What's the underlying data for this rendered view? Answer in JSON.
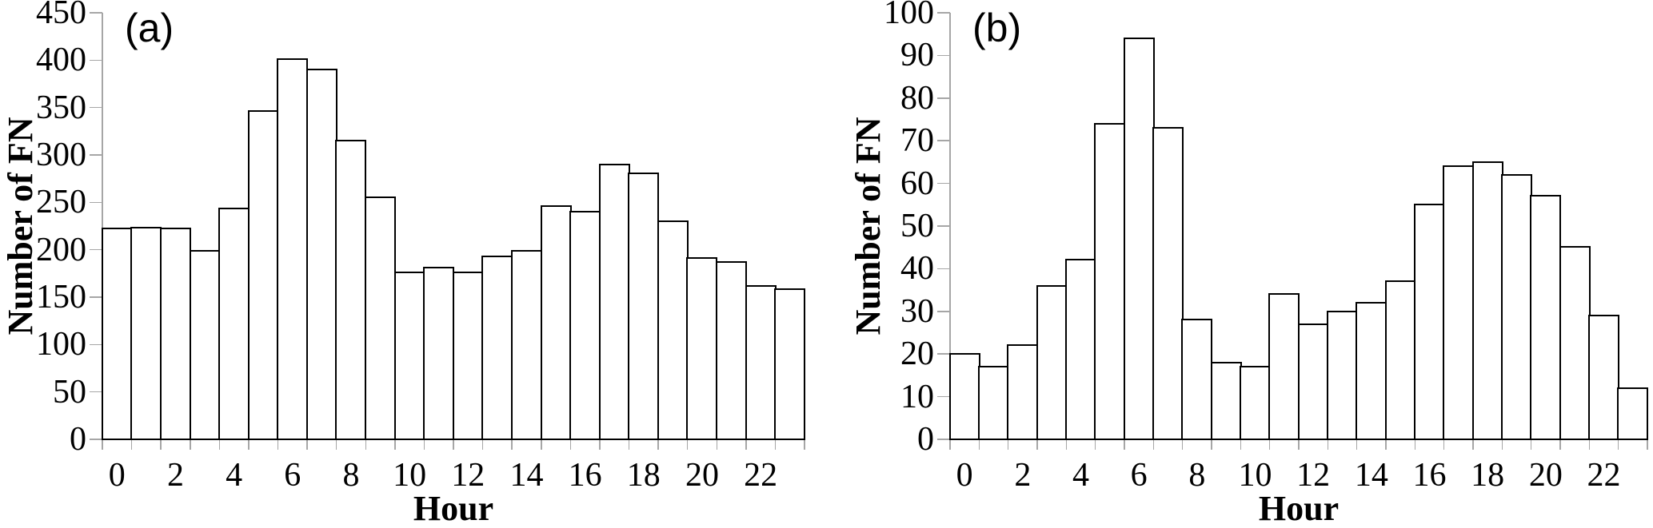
{
  "figure": {
    "background": "#ffffff",
    "bar_fill": "#ffffff",
    "bar_border_color": "#000000",
    "axis_color": "#a6a6a6",
    "text_color": "#000000"
  },
  "chart_data": [
    {
      "type": "bar",
      "panel_label": "(a)",
      "xlabel": "Hour",
      "ylabel": "Number of FN",
      "categories": [
        0,
        1,
        2,
        3,
        4,
        5,
        6,
        7,
        8,
        9,
        10,
        11,
        12,
        13,
        14,
        15,
        16,
        17,
        18,
        19,
        20,
        21,
        22,
        23
      ],
      "values": [
        222,
        223,
        222,
        199,
        243,
        346,
        401,
        390,
        315,
        255,
        176,
        181,
        176,
        193,
        199,
        246,
        240,
        290,
        280,
        230,
        191,
        187,
        162,
        158
      ],
      "ylim": [
        0,
        450
      ],
      "ytick_labels": [
        0,
        50,
        100,
        150,
        200,
        250,
        300,
        350,
        400,
        450
      ],
      "xtick_labels": [
        0,
        2,
        4,
        6,
        8,
        10,
        12,
        14,
        16,
        18,
        20,
        22
      ],
      "grid": false,
      "legend": "none"
    },
    {
      "type": "bar",
      "panel_label": "(b)",
      "xlabel": "Hour",
      "ylabel": "Number of FN",
      "categories": [
        0,
        1,
        2,
        3,
        4,
        5,
        6,
        7,
        8,
        9,
        10,
        11,
        12,
        13,
        14,
        15,
        16,
        17,
        18,
        19,
        20,
        21,
        22,
        23
      ],
      "values": [
        20,
        17,
        22,
        36,
        42,
        74,
        94,
        73,
        28,
        18,
        17,
        34,
        27,
        30,
        32,
        37,
        55,
        64,
        65,
        62,
        57,
        45,
        29,
        12
      ],
      "ylim": [
        0,
        100
      ],
      "ytick_labels": [
        0,
        10,
        20,
        30,
        40,
        50,
        60,
        70,
        80,
        90,
        100
      ],
      "xtick_labels": [
        0,
        2,
        4,
        6,
        8,
        10,
        12,
        14,
        16,
        18,
        20,
        22
      ],
      "grid": false,
      "legend": "none"
    }
  ]
}
